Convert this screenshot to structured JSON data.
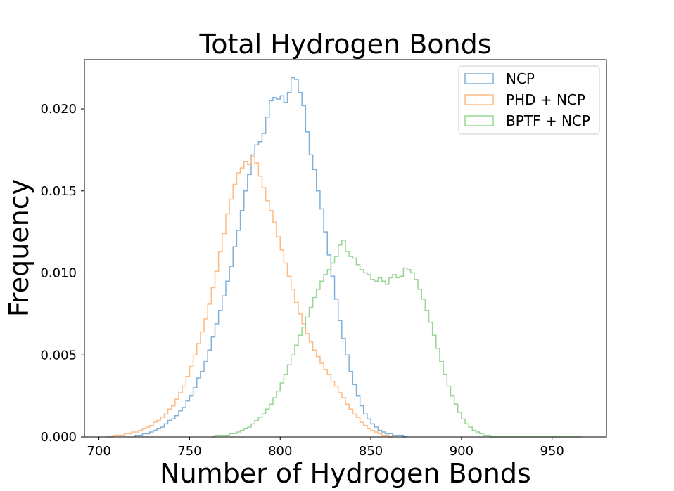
{
  "chart_data": {
    "type": "histogram",
    "title": "Total Hydrogen Bonds",
    "xlabel": "Number of Hydrogen Bonds",
    "ylabel": "Frequency",
    "xlim": [
      692,
      980
    ],
    "ylim": [
      0,
      0.023
    ],
    "x_ticks": [
      700,
      750,
      800,
      850,
      900,
      950
    ],
    "y_ticks": [
      0.0,
      0.005,
      0.01,
      0.015,
      0.02
    ],
    "y_tick_labels": [
      "0.000",
      "0.005",
      "0.010",
      "0.015",
      "0.020"
    ],
    "grid": false,
    "legend_position": "top-right",
    "bin_width": 2,
    "series": [
      {
        "name": "NCP",
        "color": "#7fb0d8",
        "start": 720,
        "values": [
          0.0001,
          0.0001,
          0.0002,
          0.0002,
          0.0003,
          0.0004,
          0.0005,
          0.0006,
          0.0008,
          0.001,
          0.0011,
          0.0013,
          0.0016,
          0.0018,
          0.0022,
          0.0025,
          0.003,
          0.0036,
          0.004,
          0.0046,
          0.0053,
          0.0061,
          0.0069,
          0.0077,
          0.0086,
          0.0095,
          0.0104,
          0.0116,
          0.0126,
          0.0138,
          0.015,
          0.016,
          0.0172,
          0.0178,
          0.018,
          0.0185,
          0.0195,
          0.0205,
          0.0207,
          0.0206,
          0.0208,
          0.0204,
          0.021,
          0.0219,
          0.0218,
          0.021,
          0.0202,
          0.0186,
          0.0172,
          0.0163,
          0.015,
          0.0139,
          0.0125,
          0.0111,
          0.0098,
          0.0084,
          0.0071,
          0.006,
          0.005,
          0.004,
          0.0032,
          0.0025,
          0.0019,
          0.0014,
          0.0011,
          0.0008,
          0.0006,
          0.0004,
          0.0003,
          0.0002,
          0.0002,
          0.0001,
          0.0001,
          0.0001,
          0.0
        ]
      },
      {
        "name": "PHD + NCP",
        "color": "#fdbb84",
        "start": 704,
        "values": [
          0.0,
          0.0,
          0.0001,
          0.0001,
          0.0001,
          0.0002,
          0.0002,
          0.0003,
          0.0003,
          0.0004,
          0.0005,
          0.0006,
          0.0007,
          0.0009,
          0.001,
          0.0012,
          0.0014,
          0.0017,
          0.0019,
          0.0023,
          0.0027,
          0.0031,
          0.0037,
          0.0043,
          0.005,
          0.0057,
          0.0064,
          0.0072,
          0.0081,
          0.0091,
          0.0101,
          0.0113,
          0.0124,
          0.0136,
          0.0145,
          0.0154,
          0.0161,
          0.0164,
          0.0168,
          0.0166,
          0.0171,
          0.0167,
          0.0159,
          0.0152,
          0.0144,
          0.0138,
          0.0131,
          0.0122,
          0.0114,
          0.0106,
          0.0098,
          0.009,
          0.0082,
          0.0075,
          0.0069,
          0.0063,
          0.0058,
          0.0053,
          0.0049,
          0.0045,
          0.0041,
          0.0038,
          0.0034,
          0.0031,
          0.0027,
          0.0024,
          0.002,
          0.0017,
          0.0014,
          0.0012,
          0.0009,
          0.0007,
          0.0005,
          0.0004,
          0.0003,
          0.0002,
          0.0001,
          0.0001,
          0.0
        ]
      },
      {
        "name": "BPTF + NCP",
        "color": "#98d594",
        "start": 762,
        "values": [
          0.0,
          0.0001,
          0.0001,
          0.0001,
          0.0001,
          0.0002,
          0.0002,
          0.0003,
          0.0004,
          0.0005,
          0.0006,
          0.0008,
          0.001,
          0.0012,
          0.0014,
          0.0017,
          0.002,
          0.0024,
          0.0028,
          0.0033,
          0.0038,
          0.0044,
          0.005,
          0.0056,
          0.0062,
          0.0067,
          0.0073,
          0.0079,
          0.0085,
          0.009,
          0.0095,
          0.0099,
          0.0102,
          0.0106,
          0.011,
          0.0117,
          0.012,
          0.0113,
          0.011,
          0.0109,
          0.0105,
          0.0102,
          0.01,
          0.0099,
          0.0096,
          0.0095,
          0.0097,
          0.0095,
          0.0093,
          0.0097,
          0.0099,
          0.0097,
          0.0098,
          0.0103,
          0.0102,
          0.01,
          0.0096,
          0.009,
          0.0084,
          0.0077,
          0.007,
          0.0062,
          0.0054,
          0.0046,
          0.0038,
          0.0031,
          0.0025,
          0.002,
          0.0015,
          0.0011,
          0.0008,
          0.0006,
          0.0004,
          0.0003,
          0.0002,
          0.0001,
          0.0001,
          0.0,
          0.0,
          0.0,
          0.0,
          0.0,
          0.0,
          0.0,
          0.0,
          0.0,
          0.0,
          0.0,
          0.0,
          0.0,
          0.0,
          0.0,
          0.0,
          0.0,
          0.0,
          0.0,
          0.0,
          0.0,
          0.0,
          0.0,
          0.0,
          0.0
        ]
      }
    ]
  }
}
